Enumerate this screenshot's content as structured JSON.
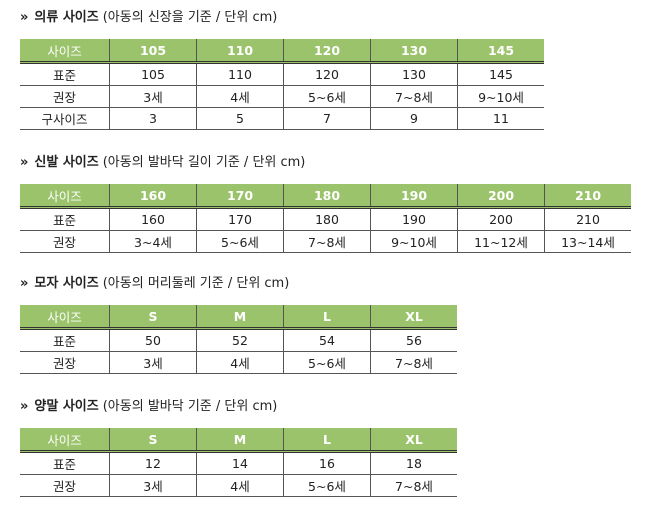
{
  "sections": [
    {
      "marker": "»",
      "title": "의류 사이즈",
      "subtitle": "(아동의 신장을 기준 / 단위 cm)",
      "headers": [
        "사이즈",
        "105",
        "110",
        "120",
        "130",
        "145"
      ],
      "rows": [
        [
          "표준",
          "105",
          "110",
          "120",
          "130",
          "145"
        ],
        [
          "권장",
          "3세",
          "4세",
          "5~6세",
          "7~8세",
          "9~10세"
        ],
        [
          "구사이즈",
          "3",
          "5",
          "7",
          "9",
          "11"
        ]
      ]
    },
    {
      "marker": "»",
      "title": "신발 사이즈",
      "subtitle": "(아동의 발바닥 길이 기준 / 단위 cm)",
      "headers": [
        "사이즈",
        "160",
        "170",
        "180",
        "190",
        "200",
        "210"
      ],
      "rows": [
        [
          "표준",
          "160",
          "170",
          "180",
          "190",
          "200",
          "210"
        ],
        [
          "권장",
          "3~4세",
          "5~6세",
          "7~8세",
          "9~10세",
          "11~12세",
          "13~14세"
        ]
      ]
    },
    {
      "marker": "»",
      "title": "모자 사이즈",
      "subtitle": "(아동의 머리둘레 기준 / 단위 cm)",
      "headers": [
        "사이즈",
        "S",
        "M",
        "L",
        "XL"
      ],
      "rows": [
        [
          "표준",
          "50",
          "52",
          "54",
          "56"
        ],
        [
          "권장",
          "3세",
          "4세",
          "5~6세",
          "7~8세"
        ]
      ]
    },
    {
      "marker": "»",
      "title": "양말 사이즈",
      "subtitle": "(아동의 발바닥 기준 / 단위 cm)",
      "headers": [
        "사이즈",
        "S",
        "M",
        "L",
        "XL"
      ],
      "rows": [
        [
          "표준",
          "12",
          "14",
          "16",
          "18"
        ],
        [
          "권장",
          "3세",
          "4세",
          "5~6세",
          "7~8세"
        ]
      ]
    }
  ],
  "colors": {
    "header_bg": "#9bc36b",
    "header_text": "#ffffff"
  }
}
